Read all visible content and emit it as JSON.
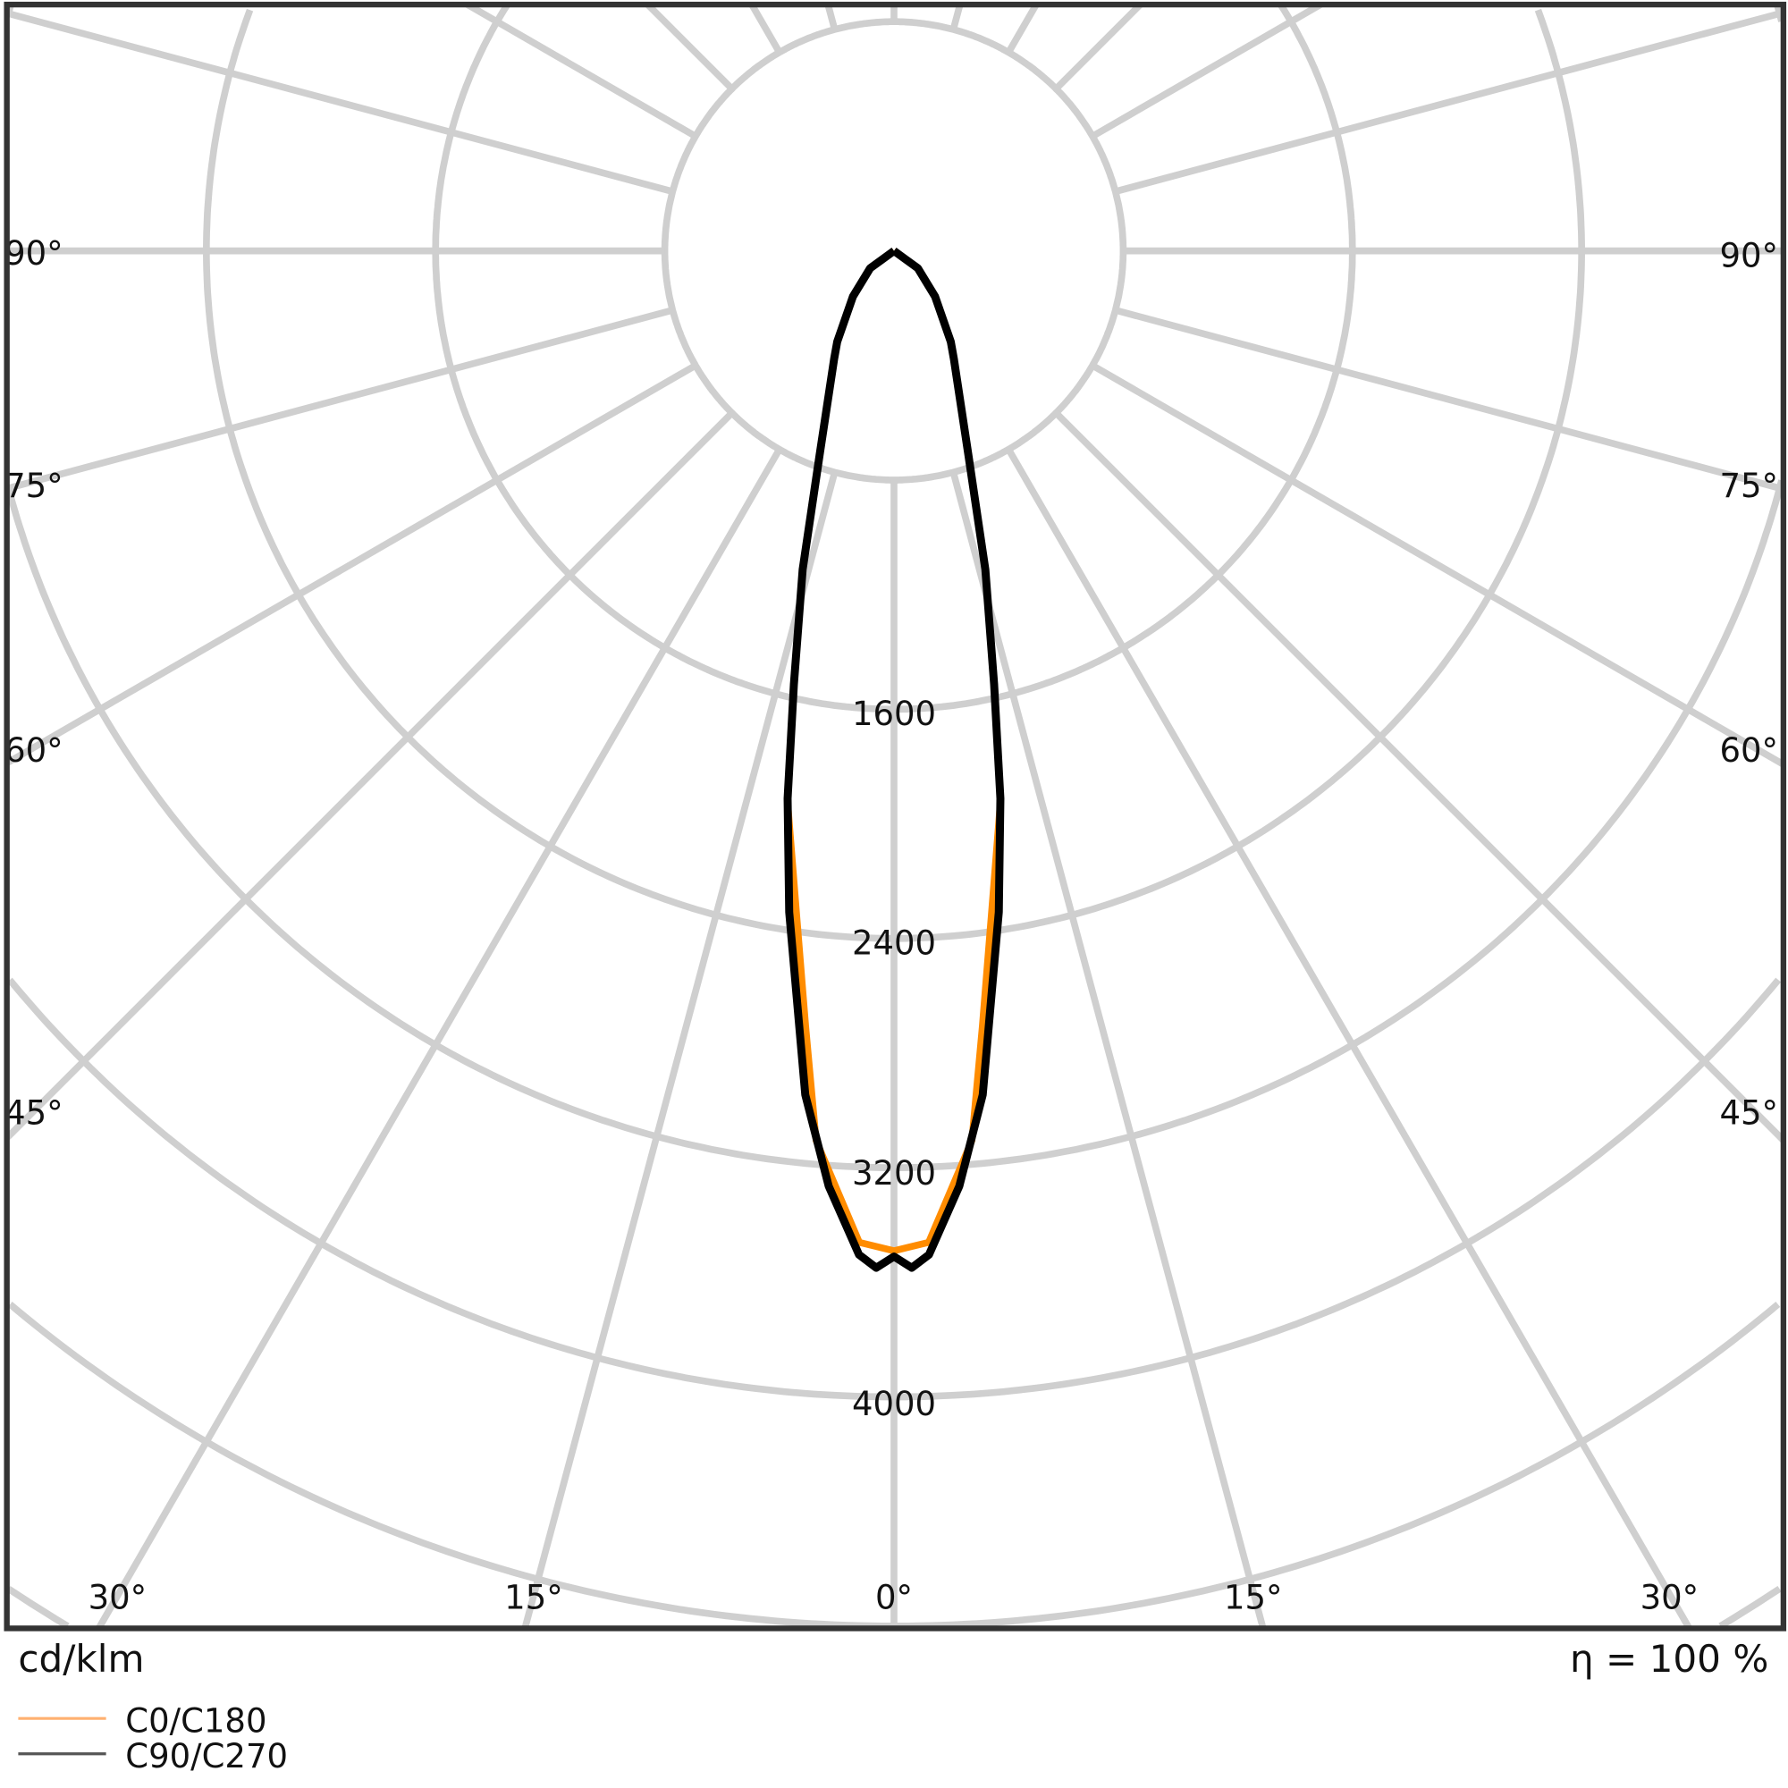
{
  "chart_data": {
    "type": "polar-line",
    "title": "",
    "unit_label": "cd/klm",
    "efficiency_label": "η = 100 %",
    "radial_ticks": [
      800,
      1600,
      2400,
      3200,
      4000
    ],
    "radial_tick_labels": [
      "1600",
      "2400",
      "3200",
      "4000"
    ],
    "angle_tick_labels": {
      "left": [
        "90°",
        "75°",
        "60°",
        "45°"
      ],
      "right": [
        "90°",
        "75°",
        "60°",
        "45°"
      ],
      "bottom": [
        "30°",
        "15°",
        "0°",
        "15°",
        "30°"
      ]
    },
    "grid": true,
    "legend_placement": "bottom-left",
    "series": [
      {
        "name": "C0/C180",
        "color": "#ff8c00",
        "angles": [
          0,
          2,
          5,
          6.5,
          8.4,
          11,
          13,
          16,
          20,
          29,
          32,
          42,
          54,
          90
        ],
        "values": [
          3490,
          3463,
          3117,
          2724,
          2333,
          1950,
          1560,
          1160,
          760,
          431,
          374,
          214,
          103,
          0
        ]
      },
      {
        "name": "C90/C270",
        "color": "#000000",
        "angles": [
          0,
          1,
          2,
          4,
          6,
          9,
          11,
          13,
          16,
          20,
          29,
          32,
          42,
          54,
          90
        ],
        "values": [
          3510,
          3550,
          3506,
          3272,
          2962,
          2337,
          1947,
          1553,
          1157,
          760,
          431,
          374,
          214,
          103,
          0
        ]
      }
    ]
  }
}
